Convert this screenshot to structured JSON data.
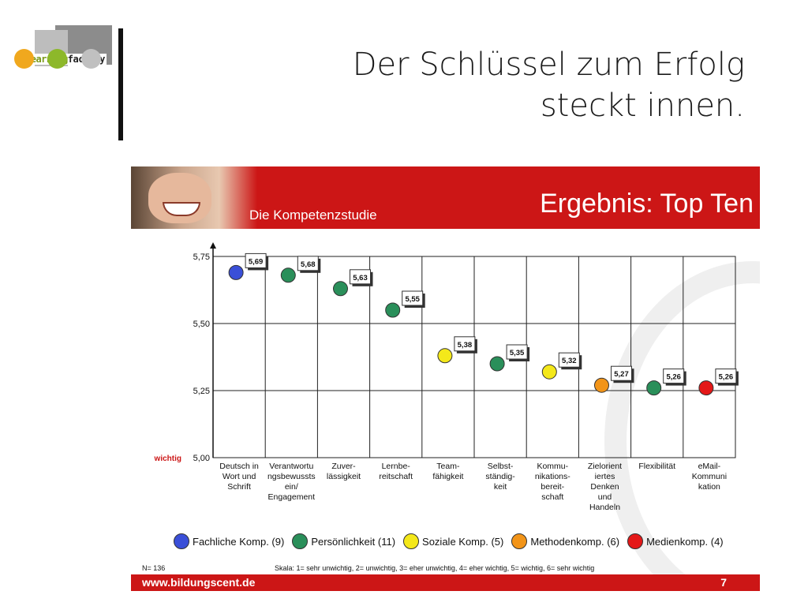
{
  "header": {
    "logo_text_1": "learning",
    "logo_text_2": "factory",
    "title_line1": "Der Schlüssel zum Erfolg",
    "title_line2": "steckt innen.",
    "dot_colors": [
      "#f0a81e",
      "#8db82a",
      "#c0c0c0"
    ]
  },
  "slide": {
    "banner_subtitle": "Die Kompetenzstudie",
    "banner_title": "Ergebnis: Top Ten",
    "footer_url": "www.bildungscent.de",
    "footer_page": "7",
    "note_n": "N= 136",
    "note_scale": "Skala: 1= sehr unwichtig, 2= unwichtig, 3= eher unwichtig, 4= eher wichtig, 5= wichtig, 6= sehr wichtig",
    "brand_color": "#cc1616"
  },
  "chart_data": {
    "type": "scatter",
    "y_tick_labels": [
      "5,00",
      "5,25",
      "5,50",
      "5,75"
    ],
    "ylim": [
      5.0,
      5.75
    ],
    "ylabel_marker": "wichtig",
    "categories": [
      "Deutsch in Wort und Schrift",
      "Verantwortungsbewusstsein/ Engagement",
      "Zuver- lässigkeit",
      "Lernbe- reitschaft",
      "Team- fähigkeit",
      "Selbst- ständig- keit",
      "Kommu- nikations- bereit- schaft",
      "Zielorientiertes Denken und Handeln",
      "Flexibilität",
      "eMail- Kommuni kation"
    ],
    "category_lines": [
      [
        "Deutsch in",
        "Wort und",
        "Schrift"
      ],
      [
        "Verantwortu",
        "ngsbewussts",
        "ein/",
        "Engagement"
      ],
      [
        "Zuver-",
        "lässigkeit"
      ],
      [
        "Lernbe-",
        "reitschaft"
      ],
      [
        "Team-",
        "fähigkeit"
      ],
      [
        "Selbst-",
        "ständig-",
        "keit"
      ],
      [
        "Kommu-",
        "nikations-",
        "bereit-",
        "schaft"
      ],
      [
        "Zielorient",
        "iertes",
        "Denken",
        "und",
        "Handeln"
      ],
      [
        "Flexibilität"
      ],
      [
        "eMail-",
        "Kommuni",
        "kation"
      ]
    ],
    "values": [
      5.69,
      5.68,
      5.63,
      5.55,
      5.38,
      5.35,
      5.32,
      5.27,
      5.26,
      5.26
    ],
    "value_labels": [
      "5,69",
      "5,68",
      "5,63",
      "5,55",
      "5,38",
      "5,35",
      "5,32",
      "5,27",
      "5,26",
      "5,26"
    ],
    "groups": [
      "Fachliche Komp.",
      "Persönlichkeit",
      "Persönlichkeit",
      "Persönlichkeit",
      "Soziale Komp.",
      "Persönlichkeit",
      "Soziale Komp.",
      "Methodenkomp.",
      "Persönlichkeit",
      "Medienkomp."
    ],
    "legend": [
      {
        "name": "Fachliche Komp. (9)",
        "group": "Fachliche Komp.",
        "color": "#3a4fd8"
      },
      {
        "name": "Persönlichkeit (11)",
        "group": "Persönlichkeit",
        "color": "#2a8f5a"
      },
      {
        "name": "Soziale Komp. (5)",
        "group": "Soziale Komp.",
        "color": "#f4e81a"
      },
      {
        "name": "Methodenkomp. (6)",
        "group": "Methodenkomp.",
        "color": "#f29418"
      },
      {
        "name": "Medienkomp. (4)",
        "group": "Medienkomp.",
        "color": "#e41818"
      }
    ],
    "grid": true
  }
}
